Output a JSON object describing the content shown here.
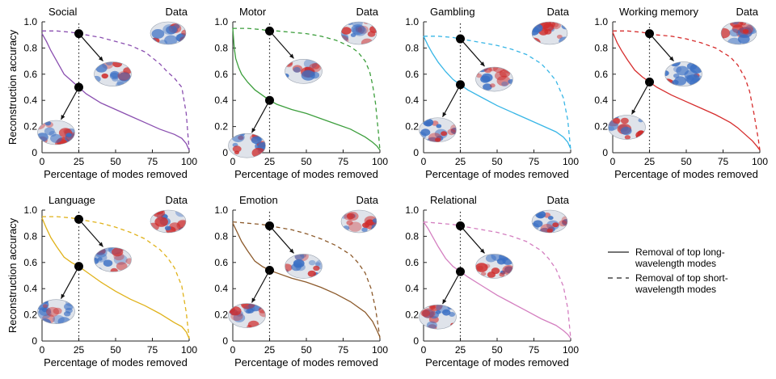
{
  "figure": {
    "ylabel": "Reconstruction accuracy",
    "xlabel": "Percentage of modes removed",
    "data_label": "Data",
    "x_ticks": [
      "0",
      "25",
      "50",
      "75",
      "100"
    ],
    "y_ticks": [
      "0",
      "0.2",
      "0.4",
      "0.6",
      "0.8",
      "1.0"
    ],
    "legend": [
      {
        "style": "solid",
        "lines": [
          "Removal of top long-",
          "wavelength modes"
        ]
      },
      {
        "style": "dashed",
        "lines": [
          "Removal of top short-",
          "wavelength modes"
        ]
      }
    ]
  },
  "colors": {
    "Social": "#8a4fb0",
    "Motor": "#3c9e3c",
    "Gambling": "#38b6e6",
    "Working memory": "#d62d2d",
    "Language": "#e0b21a",
    "Emotion": "#8c5a2b",
    "Relational": "#d47fc0",
    "brain_red": "#cf2c2c",
    "brain_blue": "#3a6fc4"
  },
  "chart_data": [
    {
      "type": "line",
      "title": "Social",
      "xlabel": "Percentage of modes removed",
      "ylabel": "Reconstruction accuracy",
      "xlim": [
        0,
        100
      ],
      "ylim": [
        0,
        1
      ],
      "marker_x": 25,
      "series": [
        {
          "style": "solid",
          "x": [
            0,
            3,
            6,
            10,
            15,
            20,
            25,
            30,
            40,
            50,
            60,
            70,
            80,
            90,
            95,
            98,
            100
          ],
          "y": [
            0.91,
            0.85,
            0.78,
            0.7,
            0.6,
            0.55,
            0.5,
            0.45,
            0.38,
            0.33,
            0.28,
            0.23,
            0.18,
            0.14,
            0.11,
            0.07,
            0.02
          ]
        },
        {
          "style": "dashed",
          "x": [
            0,
            10,
            20,
            25,
            30,
            40,
            50,
            60,
            70,
            80,
            85,
            90,
            95,
            98,
            100
          ],
          "y": [
            0.93,
            0.93,
            0.92,
            0.91,
            0.9,
            0.88,
            0.85,
            0.82,
            0.77,
            0.68,
            0.62,
            0.57,
            0.5,
            0.3,
            0.02
          ]
        }
      ]
    },
    {
      "type": "line",
      "title": "Motor",
      "xlabel": "Percentage of modes removed",
      "ylabel": "Reconstruction accuracy",
      "xlim": [
        0,
        100
      ],
      "ylim": [
        0,
        1
      ],
      "marker_x": 25,
      "series": [
        {
          "style": "solid",
          "x": [
            0,
            1,
            2,
            4,
            6,
            10,
            15,
            20,
            25,
            30,
            40,
            50,
            60,
            70,
            80,
            90,
            95,
            98,
            100
          ],
          "y": [
            0.95,
            0.8,
            0.72,
            0.65,
            0.6,
            0.54,
            0.48,
            0.44,
            0.4,
            0.37,
            0.33,
            0.3,
            0.26,
            0.22,
            0.18,
            0.12,
            0.08,
            0.05,
            0.02
          ]
        },
        {
          "style": "dashed",
          "x": [
            0,
            10,
            20,
            25,
            30,
            40,
            50,
            60,
            70,
            80,
            85,
            90,
            93,
            95,
            97,
            99,
            100
          ],
          "y": [
            0.95,
            0.95,
            0.94,
            0.93,
            0.93,
            0.92,
            0.91,
            0.89,
            0.86,
            0.81,
            0.77,
            0.7,
            0.62,
            0.52,
            0.38,
            0.15,
            0.02
          ]
        }
      ]
    },
    {
      "type": "line",
      "title": "Gambling",
      "xlabel": "Percentage of modes removed",
      "ylabel": "Reconstruction accuracy",
      "xlim": [
        0,
        100
      ],
      "ylim": [
        0,
        1
      ],
      "marker_x": 25,
      "series": [
        {
          "style": "solid",
          "x": [
            0,
            3,
            6,
            10,
            15,
            20,
            25,
            30,
            40,
            50,
            60,
            70,
            80,
            90,
            95,
            98,
            100
          ],
          "y": [
            0.89,
            0.82,
            0.76,
            0.69,
            0.62,
            0.56,
            0.52,
            0.48,
            0.42,
            0.36,
            0.31,
            0.26,
            0.21,
            0.16,
            0.12,
            0.08,
            0.03
          ]
        },
        {
          "style": "dashed",
          "x": [
            0,
            10,
            20,
            25,
            30,
            40,
            50,
            60,
            70,
            80,
            85,
            90,
            95,
            98,
            100
          ],
          "y": [
            0.89,
            0.89,
            0.88,
            0.87,
            0.86,
            0.84,
            0.82,
            0.79,
            0.75,
            0.68,
            0.62,
            0.55,
            0.42,
            0.25,
            0.02
          ]
        }
      ]
    },
    {
      "type": "line",
      "title": "Working memory",
      "xlabel": "Percentage of modes removed",
      "ylabel": "Reconstruction accuracy",
      "xlim": [
        0,
        100
      ],
      "ylim": [
        0,
        1
      ],
      "marker_x": 25,
      "series": [
        {
          "style": "solid",
          "x": [
            0,
            3,
            6,
            10,
            15,
            20,
            25,
            30,
            40,
            50,
            60,
            70,
            80,
            85,
            90,
            95,
            98,
            100
          ],
          "y": [
            0.92,
            0.84,
            0.78,
            0.71,
            0.63,
            0.58,
            0.54,
            0.5,
            0.44,
            0.39,
            0.34,
            0.29,
            0.23,
            0.19,
            0.14,
            0.09,
            0.05,
            0.02
          ]
        },
        {
          "style": "dashed",
          "x": [
            0,
            10,
            20,
            25,
            30,
            40,
            50,
            60,
            70,
            80,
            85,
            90,
            93,
            96,
            99,
            100
          ],
          "y": [
            0.93,
            0.93,
            0.92,
            0.91,
            0.9,
            0.89,
            0.87,
            0.84,
            0.8,
            0.73,
            0.67,
            0.57,
            0.47,
            0.3,
            0.1,
            0.02
          ]
        }
      ]
    },
    {
      "type": "line",
      "title": "Language",
      "xlabel": "Percentage of modes removed",
      "ylabel": "Reconstruction accuracy",
      "xlim": [
        0,
        100
      ],
      "ylim": [
        0,
        1
      ],
      "marker_x": 25,
      "series": [
        {
          "style": "solid",
          "x": [
            0,
            3,
            6,
            10,
            15,
            20,
            25,
            30,
            40,
            50,
            60,
            70,
            80,
            90,
            95,
            98,
            100
          ],
          "y": [
            0.94,
            0.86,
            0.79,
            0.72,
            0.64,
            0.6,
            0.57,
            0.53,
            0.45,
            0.38,
            0.32,
            0.27,
            0.21,
            0.14,
            0.11,
            0.07,
            0.02
          ]
        },
        {
          "style": "dashed",
          "x": [
            0,
            10,
            20,
            25,
            30,
            40,
            50,
            60,
            70,
            80,
            85,
            90,
            95,
            98,
            100
          ],
          "y": [
            0.95,
            0.95,
            0.94,
            0.93,
            0.92,
            0.9,
            0.87,
            0.83,
            0.78,
            0.7,
            0.64,
            0.56,
            0.42,
            0.22,
            0.02
          ]
        }
      ]
    },
    {
      "type": "line",
      "title": "Emotion",
      "xlabel": "Percentage of modes removed",
      "ylabel": "Reconstruction accuracy",
      "xlim": [
        0,
        100
      ],
      "ylim": [
        0,
        1
      ],
      "marker_x": 25,
      "series": [
        {
          "style": "solid",
          "x": [
            0,
            3,
            6,
            10,
            15,
            20,
            25,
            30,
            40,
            50,
            60,
            70,
            80,
            90,
            95,
            98,
            100
          ],
          "y": [
            0.9,
            0.83,
            0.76,
            0.69,
            0.61,
            0.57,
            0.54,
            0.52,
            0.48,
            0.45,
            0.41,
            0.36,
            0.3,
            0.22,
            0.15,
            0.08,
            0.03
          ]
        },
        {
          "style": "dashed",
          "x": [
            0,
            10,
            20,
            25,
            30,
            40,
            50,
            60,
            70,
            80,
            85,
            90,
            94,
            97,
            99,
            100
          ],
          "y": [
            0.91,
            0.9,
            0.89,
            0.88,
            0.87,
            0.85,
            0.82,
            0.78,
            0.73,
            0.66,
            0.6,
            0.52,
            0.4,
            0.25,
            0.1,
            0.02
          ]
        }
      ]
    },
    {
      "type": "line",
      "title": "Relational",
      "xlabel": "Percentage of modes removed",
      "ylabel": "Reconstruction accuracy",
      "xlim": [
        0,
        100
      ],
      "ylim": [
        0,
        1
      ],
      "marker_x": 25,
      "series": [
        {
          "style": "solid",
          "x": [
            0,
            3,
            6,
            10,
            15,
            20,
            25,
            30,
            40,
            50,
            60,
            70,
            80,
            90,
            95,
            98,
            100
          ],
          "y": [
            0.91,
            0.86,
            0.8,
            0.72,
            0.63,
            0.57,
            0.53,
            0.49,
            0.42,
            0.35,
            0.29,
            0.23,
            0.17,
            0.12,
            0.08,
            0.05,
            0.02
          ]
        },
        {
          "style": "dashed",
          "x": [
            0,
            10,
            20,
            25,
            30,
            40,
            50,
            60,
            70,
            80,
            85,
            90,
            95,
            98,
            100
          ],
          "y": [
            0.91,
            0.9,
            0.89,
            0.88,
            0.87,
            0.85,
            0.83,
            0.8,
            0.76,
            0.69,
            0.63,
            0.55,
            0.42,
            0.25,
            0.02
          ]
        }
      ]
    }
  ]
}
